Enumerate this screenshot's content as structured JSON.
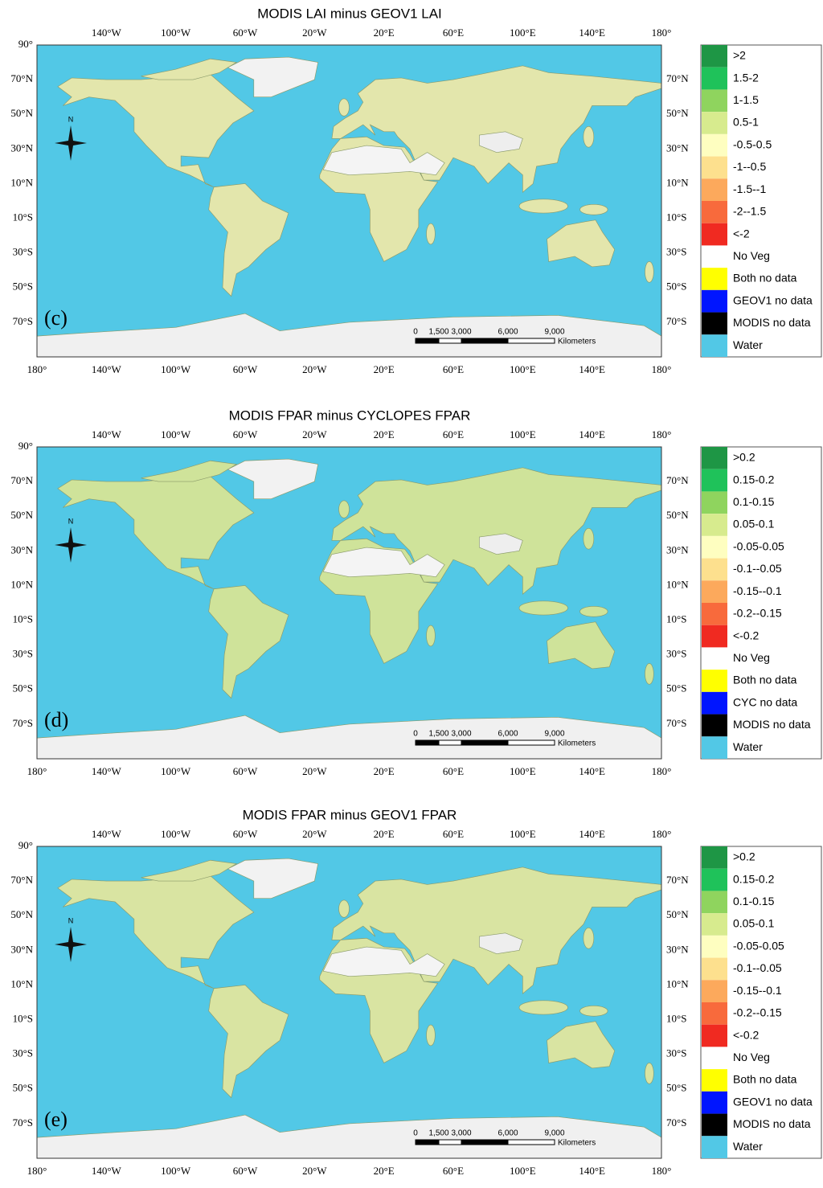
{
  "panels": [
    {
      "title": "MODIS LAI minus GEOV1 LAI",
      "label": "(c)",
      "legend": [
        {
          "label": ">2",
          "color": "#1e9645"
        },
        {
          "label": "1.5-2",
          "color": "#1fc25a"
        },
        {
          "label": "1-1.5",
          "color": "#8fd45e"
        },
        {
          "label": "0.5-1",
          "color": "#d7eb8e"
        },
        {
          "label": "-0.5-0.5",
          "color": "#fefec0"
        },
        {
          "label": "-1--0.5",
          "color": "#fde08e"
        },
        {
          "label": "-1.5--1",
          "color": "#fca95c"
        },
        {
          "label": "-2--1.5",
          "color": "#f86a3c"
        },
        {
          "label": "<-2",
          "color": "#f02a21"
        },
        {
          "label": "No Veg",
          "color": "#ffffff"
        },
        {
          "label": "Both no data",
          "color": "#ffff00"
        },
        {
          "label": "GEOV1 no data",
          "color": "#0015ff"
        },
        {
          "label": "MODIS no data",
          "color": "#000000"
        },
        {
          "label": "Water",
          "color": "#52c8e6"
        }
      ]
    },
    {
      "title": "MODIS FPAR minus CYCLOPES FPAR",
      "label": "(d)",
      "legend": [
        {
          "label": ">0.2",
          "color": "#1e9645"
        },
        {
          "label": "0.15-0.2",
          "color": "#1fc25a"
        },
        {
          "label": "0.1-0.15",
          "color": "#8fd45e"
        },
        {
          "label": "0.05-0.1",
          "color": "#d7eb8e"
        },
        {
          "label": "-0.05-0.05",
          "color": "#fefec0"
        },
        {
          "label": "-0.1--0.05",
          "color": "#fde08e"
        },
        {
          "label": "-0.15--0.1",
          "color": "#fca95c"
        },
        {
          "label": "-0.2--0.15",
          "color": "#f86a3c"
        },
        {
          "label": "<-0.2",
          "color": "#f02a21"
        },
        {
          "label": "No Veg",
          "color": "#ffffff"
        },
        {
          "label": "Both no data",
          "color": "#ffff00"
        },
        {
          "label": "CYC no data",
          "color": "#0015ff"
        },
        {
          "label": "MODIS no data",
          "color": "#000000"
        },
        {
          "label": "Water",
          "color": "#52c8e6"
        }
      ]
    },
    {
      "title": "MODIS FPAR minus GEOV1 FPAR",
      "label": "(e)",
      "legend": [
        {
          "label": ">0.2",
          "color": "#1e9645"
        },
        {
          "label": "0.15-0.2",
          "color": "#1fc25a"
        },
        {
          "label": "0.1-0.15",
          "color": "#8fd45e"
        },
        {
          "label": "0.05-0.1",
          "color": "#d7eb8e"
        },
        {
          "label": "-0.05-0.05",
          "color": "#fefec0"
        },
        {
          "label": "-0.1--0.05",
          "color": "#fde08e"
        },
        {
          "label": "-0.15--0.1",
          "color": "#fca95c"
        },
        {
          "label": "-0.2--0.15",
          "color": "#f86a3c"
        },
        {
          "label": "<-0.2",
          "color": "#f02a21"
        },
        {
          "label": "No Veg",
          "color": "#ffffff"
        },
        {
          "label": "Both no data",
          "color": "#ffff00"
        },
        {
          "label": "GEOV1 no data",
          "color": "#0015ff"
        },
        {
          "label": "MODIS no data",
          "color": "#000000"
        },
        {
          "label": "Water",
          "color": "#52c8e6"
        }
      ]
    }
  ],
  "lon_labels_top": [
    "140°W",
    "100°W",
    "60°W",
    "20°W",
    "20°E",
    "60°E",
    "100°E",
    "140°E",
    "180°"
  ],
  "lon_labels_bottom": [
    "180°",
    "140°W",
    "100°W",
    "60°W",
    "20°W",
    "20°E",
    "60°E",
    "100°E",
    "140°E",
    "180°"
  ],
  "lat_labels_left": [
    "90°",
    "70°N",
    "50°N",
    "30°N",
    "10°N",
    "10°S",
    "30°S",
    "50°S",
    "70°S"
  ],
  "lat_labels_right": [
    "70°N",
    "50°N",
    "30°N",
    "10°N",
    "10°S",
    "30°S",
    "50°S",
    "70°S"
  ],
  "scale_bar": {
    "ticks": [
      "0",
      "1,500",
      "3,000",
      "6,000",
      "9,000"
    ],
    "unit": "Kilometers"
  },
  "compass": "N"
}
